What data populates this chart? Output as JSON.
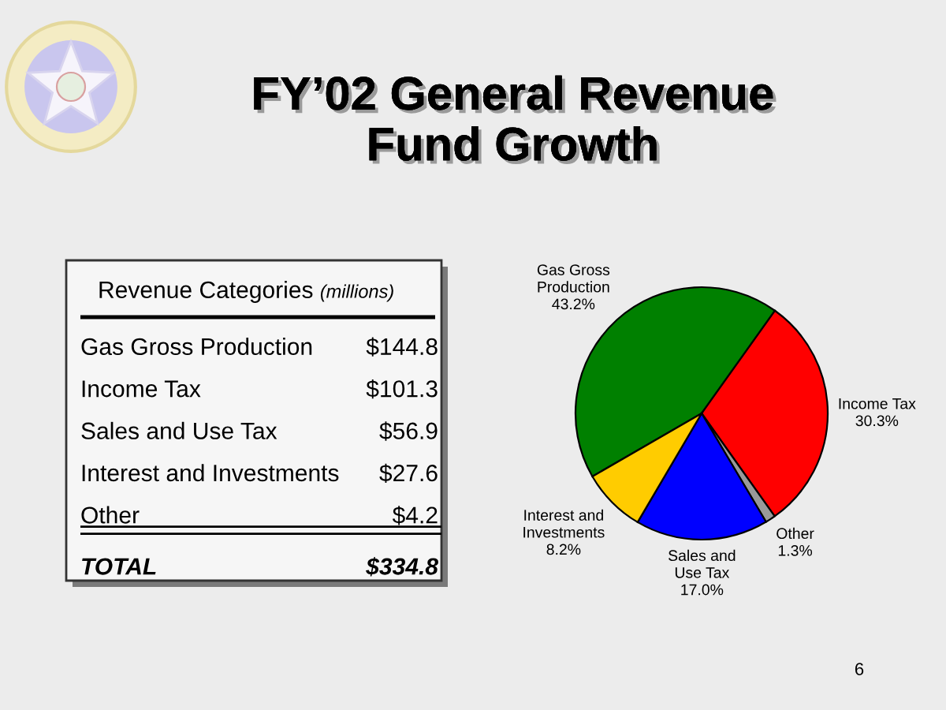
{
  "chart_data": [
    {
      "type": "other",
      "title": "Revenue Categories",
      "subtitle": "(millions)",
      "categories": [
        "Gas Gross Production",
        "Income Tax",
        "Sales and Use Tax",
        "Interest and Investments",
        "Other",
        "TOTAL"
      ],
      "value_labels": [
        "$144.8",
        "$101.3",
        "$56.9",
        "$27.6",
        "$4.2",
        "$334.8"
      ]
    },
    {
      "type": "pie",
      "title": "FY’02 General Revenue\nFund Growth",
      "categories": [
        "Gas Gross\nProduction",
        "Income Tax",
        "Other",
        "Sales and\nUse Tax",
        "Interest and\nInvestments"
      ],
      "values": [
        43.2,
        30.3,
        1.3,
        17.0,
        8.2
      ],
      "value_labels": [
        "43.2%",
        "30.3%",
        "1.3%",
        "17.0%",
        "8.2%"
      ],
      "colors": [
        "#008000",
        "#ff0000",
        "#999999",
        "#0000ff",
        "#ffcc00"
      ],
      "annotations": [
        "6"
      ]
    }
  ]
}
